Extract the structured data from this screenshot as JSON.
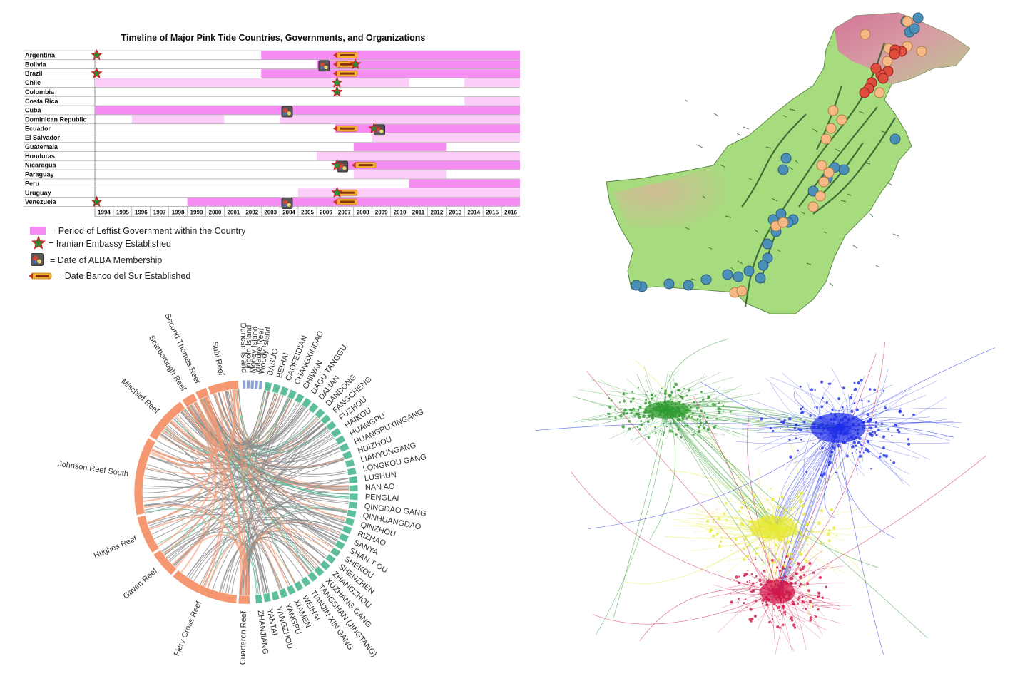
{
  "timeline": {
    "title": "Timeline of Major Pink Tide Countries, Governments, and Organizations",
    "countries": [
      "Argentina",
      "Bolivia",
      "Brazil",
      "Chile",
      "Colombia",
      "Costa Rica",
      "Cuba",
      "Dominican Republic",
      "Ecuador",
      "El Salvador",
      "Guatemala",
      "Honduras",
      "Nicaragua",
      "Paraguay",
      "Peru",
      "Uruguay",
      "Venezuela"
    ],
    "years": [
      "1994",
      "1995",
      "1996",
      "1997",
      "1998",
      "1999",
      "2000",
      "2001",
      "2002",
      "2003",
      "2004",
      "2005",
      "2006",
      "2007",
      "2008",
      "2009",
      "2010",
      "2011",
      "2012",
      "2013",
      "2014",
      "2015",
      "2016"
    ],
    "colors": {
      "strong_pink": "#f48cf2",
      "light_pink": "#fbcdf8",
      "star": "#2e8b3a",
      "star_outline": "#d42020"
    },
    "bars": [
      {
        "country": "Argentina",
        "start": 2003,
        "end": 2016,
        "tone": "strong"
      },
      {
        "country": "Bolivia",
        "start": 2006,
        "end": 2016,
        "tone": "strong"
      },
      {
        "country": "Brazil",
        "start": 2003,
        "end": 2016,
        "tone": "strong"
      },
      {
        "country": "Chile",
        "start": 1994,
        "end": 2010,
        "tone": "light"
      },
      {
        "country": "Chile",
        "start": 2014,
        "end": 2016,
        "tone": "light"
      },
      {
        "country": "Costa Rica",
        "start": 2014,
        "end": 2016,
        "tone": "light"
      },
      {
        "country": "Cuba",
        "start": 1994,
        "end": 2016,
        "tone": "strong"
      },
      {
        "country": "Dominican Republic",
        "start": 1996,
        "end": 2000,
        "tone": "light"
      },
      {
        "country": "Dominican Republic",
        "start": 2004,
        "end": 2016,
        "tone": "light"
      },
      {
        "country": "Ecuador",
        "start": 2007,
        "end": 2016,
        "tone": "strong"
      },
      {
        "country": "El Salvador",
        "start": 2009,
        "end": 2016,
        "tone": "light"
      },
      {
        "country": "Guatemala",
        "start": 2008,
        "end": 2012,
        "tone": "strong"
      },
      {
        "country": "Honduras",
        "start": 2006,
        "end": 2016,
        "tone": "light"
      },
      {
        "country": "Nicaragua",
        "start": 2007,
        "end": 2016,
        "tone": "strong"
      },
      {
        "country": "Paraguay",
        "start": 2008,
        "end": 2012,
        "tone": "light"
      },
      {
        "country": "Peru",
        "start": 2011,
        "end": 2016,
        "tone": "strong"
      },
      {
        "country": "Uruguay",
        "start": 2005,
        "end": 2016,
        "tone": "light"
      },
      {
        "country": "Venezuela",
        "start": 1999,
        "end": 2016,
        "tone": "strong"
      }
    ],
    "embassies": [
      {
        "country": "Argentina",
        "year": 1994
      },
      {
        "country": "Brazil",
        "year": 1994
      },
      {
        "country": "Venezuela",
        "year": 1994
      },
      {
        "country": "Bolivia",
        "year": 2008
      },
      {
        "country": "Chile",
        "year": 2007
      },
      {
        "country": "Colombia",
        "year": 2007
      },
      {
        "country": "Ecuador",
        "year": 2009
      },
      {
        "country": "Nicaragua",
        "year": 2007
      },
      {
        "country": "Uruguay",
        "year": 2007
      }
    ],
    "alba": [
      {
        "country": "Bolivia",
        "year": 2006
      },
      {
        "country": "Cuba",
        "year": 2004
      },
      {
        "country": "Ecuador",
        "year": 2009
      },
      {
        "country": "Nicaragua",
        "year": 2007
      },
      {
        "country": "Venezuela",
        "year": 2004
      }
    ],
    "banco": [
      {
        "country": "Argentina",
        "year": 2007
      },
      {
        "country": "Bolivia",
        "year": 2007
      },
      {
        "country": "Brazil",
        "year": 2007
      },
      {
        "country": "Ecuador",
        "year": 2007
      },
      {
        "country": "Nicaragua",
        "year": 2008
      },
      {
        "country": "Uruguay",
        "year": 2007
      },
      {
        "country": "Venezuela",
        "year": 2007
      }
    ],
    "legend": [
      {
        "symbol": "pink-box",
        "label": "= Period of Leftist Government within the Country"
      },
      {
        "symbol": "star",
        "label": "= Iranian Embassy Established"
      },
      {
        "symbol": "alba",
        "label": "= Date of ALBA Membership"
      },
      {
        "symbol": "banco",
        "label": "= Date Banco del Sur Established"
      }
    ]
  },
  "map": {
    "colors": {
      "land": "#a6dc7e",
      "highland": "#d9a3a8",
      "mountain": "#d66f9a",
      "river": "#2d5a2a",
      "dot_blue": "#4a8fb8",
      "dot_orange": "#f6b985",
      "dot_red": "#e04c3c"
    },
    "blue_count": 28,
    "orange_count": 20,
    "red_count": 10
  },
  "chord": {
    "colors": {
      "reef": "#f59872",
      "port": "#5dbf9a",
      "island": "#8fa4d3",
      "ribbon": "#8a8a8a"
    },
    "reefs": [
      "Subi Reef",
      "Second Thomas Reef",
      "Scarborough Reef",
      "Mischief Reef",
      "Johnson Reef South",
      "Hughes Reef",
      "Gaven Reef",
      "Fiery Cross Reef",
      "Cuarteron Reef"
    ],
    "islands": [
      "Duncan Island",
      "Lincoln Island",
      "Money Island",
      "Yuladre Reef",
      "Woody Island"
    ],
    "ports": [
      "BASUO",
      "BEIHAI",
      "CAOFEIDIAN",
      "CHANGXINDAO",
      "CHIWAN",
      "DAGU TANGGU",
      "DALIAN",
      "DANDONG",
      "FANGCHENG",
      "FUZHOU",
      "HAIKOU",
      "HUANGPU",
      "HUANGPUXINGANG",
      "HUIZHOU",
      "LIANYUNGANG",
      "LONGKOU GANG",
      "LUSHUN",
      "NAN AO",
      "PENGLAI",
      "QINGDAO GANG",
      "QINHUANGDAO",
      "QINZHOU",
      "RIZHAO",
      "SANYA",
      "SHAN T OU",
      "SHEKOU",
      "SHENZHEN",
      "ZHANGZHOU",
      "XUZHANG GANG",
      "TANGSHAN (JINGTANG)",
      "TIANJIN XIN GANG",
      "WEIHAI",
      "XIAMEN",
      "YANGPU",
      "YANGZHOU",
      "YANTAI",
      "ZHANJIANG"
    ]
  },
  "network": {
    "clusters": [
      {
        "name": "green",
        "color": "#2e9a2e"
      },
      {
        "name": "blue",
        "color": "#1e2ee8"
      },
      {
        "name": "yellow",
        "color": "#e6e832"
      },
      {
        "name": "red",
        "color": "#d0184a"
      }
    ]
  }
}
